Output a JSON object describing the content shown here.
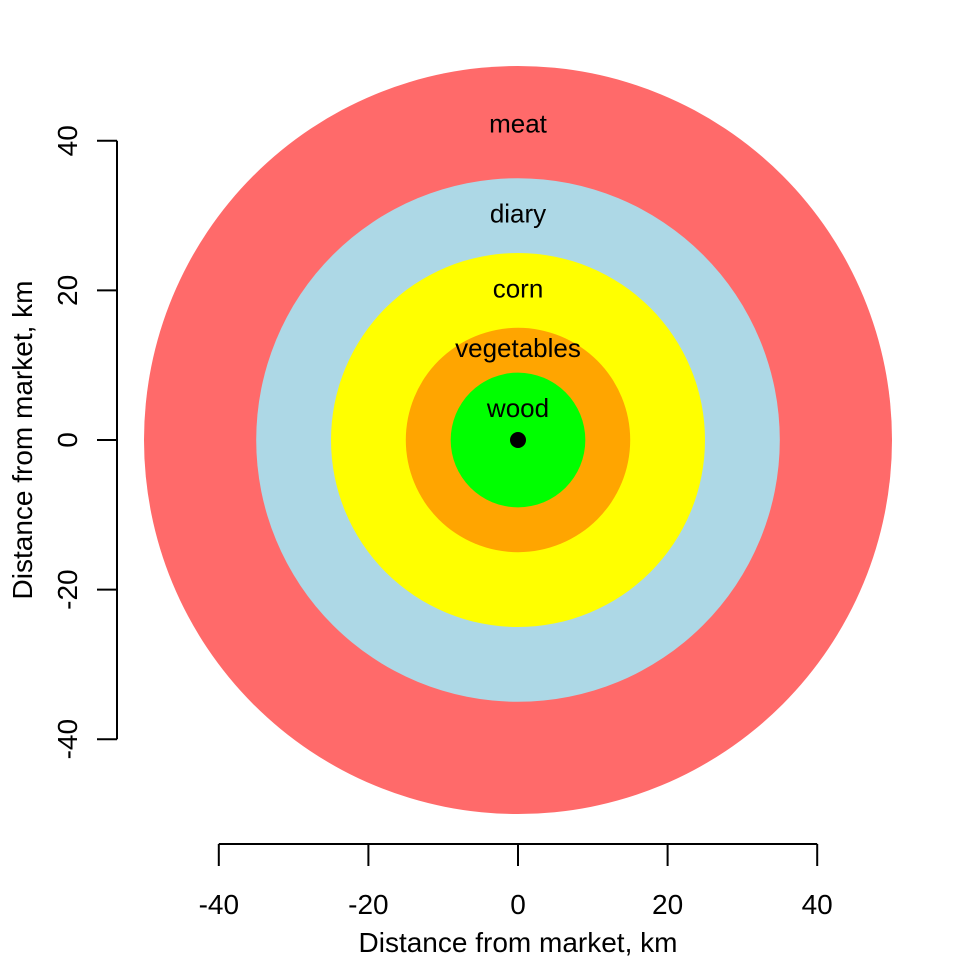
{
  "chart_data": {
    "type": "concentric-rings",
    "xlabel": "Distance from market, km",
    "ylabel": "Distance from market, km",
    "xlim": [
      -40,
      40
    ],
    "ylim": [
      -40,
      40
    ],
    "xticks": [
      -40,
      -20,
      0,
      20,
      40
    ],
    "yticks": [
      -40,
      -20,
      0,
      20,
      40
    ],
    "tick_labels_x": [
      "-40",
      "-20",
      "0",
      "20",
      "40"
    ],
    "tick_labels_y": [
      "-40",
      "-20",
      "0",
      "20",
      "40"
    ],
    "grid": false,
    "rings": [
      {
        "label": "meat",
        "outer_radius_km": 50,
        "color": "#FF6A6A"
      },
      {
        "label": "diary",
        "outer_radius_km": 35,
        "color": "#ADD8E6"
      },
      {
        "label": "corn",
        "outer_radius_km": 25,
        "color": "#FFFF00"
      },
      {
        "label": "vegetables",
        "outer_radius_km": 15,
        "color": "#FFA500"
      },
      {
        "label": "wood",
        "outer_radius_km": 9,
        "color": "#00FF00"
      }
    ],
    "ring_label_y_km": [
      42,
      30,
      20,
      12,
      4
    ],
    "market": {
      "x": 0,
      "y": 0,
      "color": "#000000"
    }
  }
}
